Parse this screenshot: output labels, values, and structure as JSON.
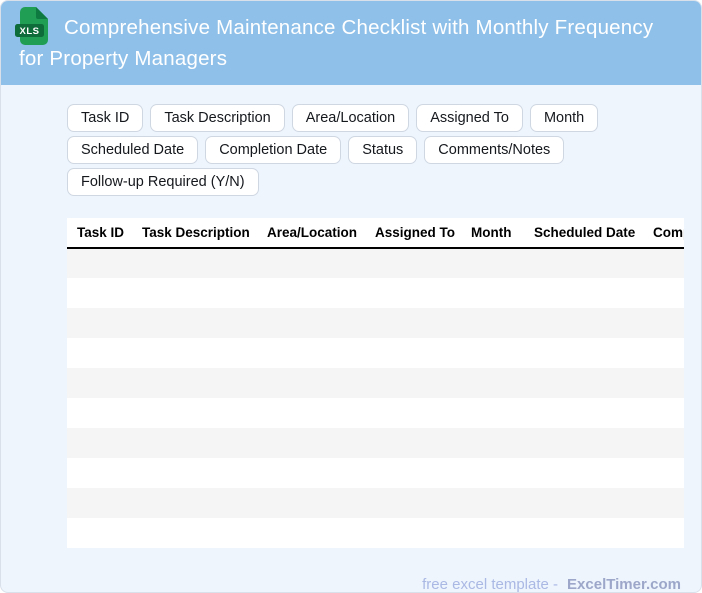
{
  "header": {
    "title": "Comprehensive Maintenance Checklist with Monthly Frequency for Property Managers",
    "title_lines": [
      "Comprehensive Maintenance Checklist with Monthly Frequency",
      "for Property Managers"
    ],
    "icon_label": "XLS",
    "background_color": "#8fc0e9",
    "text_color": "#ffffff",
    "icon_body_color": "#1f9e54",
    "icon_fold_color": "#0f7a40",
    "icon_band_color": "#0e6b3a"
  },
  "column_chips": [
    "Task ID",
    "Task Description",
    "Area/Location",
    "Assigned To",
    "Month",
    "Scheduled Date",
    "Completion Date",
    "Status",
    "Comments/Notes",
    "Follow-up Required (Y/N)"
  ],
  "table": {
    "columns": [
      "Task ID",
      "Task Description",
      "Area/Location",
      "Assigned To",
      "Month",
      "Scheduled Date",
      "Completion Date"
    ],
    "empty_row_count": 10,
    "stripe_color": "#f5f5f5",
    "header_divider_color": "#000000"
  },
  "footer": {
    "label": "free excel template -",
    "brand": "ExcelTimer.com"
  },
  "colors": {
    "page_background": "#eef5fd",
    "chip_border": "#cfd7e2",
    "footer_label": "#aab8e4",
    "footer_brand": "#9ca7c9"
  }
}
